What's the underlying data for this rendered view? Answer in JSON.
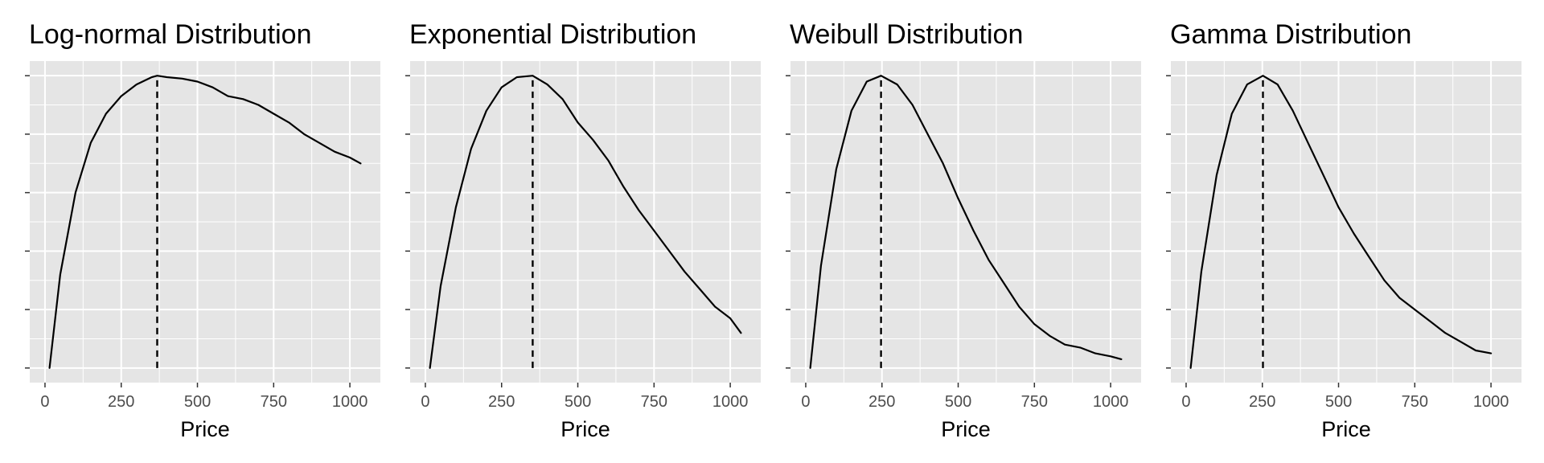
{
  "colors": {
    "panel_bg": "#e5e5e5",
    "grid": "#ffffff",
    "curve": "#000000",
    "mode_line": "#000000",
    "tick_text": "#4d4d4d",
    "tick_mark": "#333333"
  },
  "chart_data": [
    {
      "type": "line",
      "title": "Log-normal Distribution",
      "xlabel": "Price",
      "ylabel": "",
      "xlim": [
        -50,
        1100
      ],
      "ylim": [
        -0.05,
        1.05
      ],
      "xticks": [
        0,
        250,
        500,
        750,
        1000
      ],
      "xtick_labels": [
        "0",
        "250",
        "500",
        "750",
        "1000"
      ],
      "y_tick_labels_shown": false,
      "grid": true,
      "mode_line": {
        "x": 368,
        "style": "dashed"
      },
      "x": [
        15,
        50,
        100,
        150,
        200,
        250,
        300,
        350,
        368,
        400,
        450,
        500,
        550,
        600,
        650,
        700,
        750,
        800,
        850,
        900,
        950,
        1000,
        1035
      ],
      "y": [
        0.0,
        0.32,
        0.6,
        0.77,
        0.87,
        0.93,
        0.97,
        0.995,
        1.0,
        0.995,
        0.99,
        0.98,
        0.96,
        0.93,
        0.92,
        0.9,
        0.87,
        0.84,
        0.8,
        0.77,
        0.74,
        0.72,
        0.7
      ]
    },
    {
      "type": "line",
      "title": "Exponential Distribution",
      "xlabel": "Price",
      "ylabel": "",
      "xlim": [
        -50,
        1100
      ],
      "ylim": [
        -0.05,
        1.05
      ],
      "xticks": [
        0,
        250,
        500,
        750,
        1000
      ],
      "xtick_labels": [
        "0",
        "250",
        "500",
        "750",
        "1000"
      ],
      "y_tick_labels_shown": false,
      "grid": true,
      "mode_line": {
        "x": 352,
        "style": "dashed"
      },
      "x": [
        15,
        50,
        100,
        150,
        200,
        250,
        300,
        352,
        400,
        450,
        500,
        550,
        600,
        650,
        700,
        750,
        800,
        850,
        900,
        950,
        1000,
        1035
      ],
      "y": [
        0.0,
        0.28,
        0.55,
        0.75,
        0.88,
        0.96,
        0.995,
        1.0,
        0.97,
        0.92,
        0.84,
        0.78,
        0.71,
        0.62,
        0.54,
        0.47,
        0.4,
        0.33,
        0.27,
        0.21,
        0.17,
        0.12
      ]
    },
    {
      "type": "line",
      "title": "Weibull Distribution",
      "xlabel": "Price",
      "ylabel": "",
      "xlim": [
        -50,
        1100
      ],
      "ylim": [
        -0.05,
        1.05
      ],
      "xticks": [
        0,
        250,
        500,
        750,
        1000
      ],
      "xtick_labels": [
        "0",
        "250",
        "500",
        "750",
        "1000"
      ],
      "y_tick_labels_shown": false,
      "grid": true,
      "mode_line": {
        "x": 247,
        "style": "dashed"
      },
      "x": [
        15,
        50,
        100,
        150,
        200,
        247,
        300,
        350,
        400,
        450,
        500,
        550,
        600,
        650,
        700,
        750,
        800,
        850,
        900,
        950,
        1000,
        1035
      ],
      "y": [
        0.0,
        0.35,
        0.68,
        0.88,
        0.98,
        1.0,
        0.97,
        0.9,
        0.8,
        0.7,
        0.58,
        0.47,
        0.37,
        0.29,
        0.21,
        0.15,
        0.11,
        0.08,
        0.07,
        0.05,
        0.04,
        0.03
      ]
    },
    {
      "type": "line",
      "title": "Gamma Distribution",
      "xlabel": "Price",
      "ylabel": "",
      "xlim": [
        -50,
        1100
      ],
      "ylim": [
        -0.05,
        1.05
      ],
      "xticks": [
        0,
        250,
        500,
        750,
        1000
      ],
      "xtick_labels": [
        "0",
        "250",
        "500",
        "750",
        "1000"
      ],
      "y_tick_labels_shown": false,
      "grid": true,
      "mode_line": {
        "x": 252,
        "style": "dashed"
      },
      "x": [
        15,
        50,
        100,
        150,
        200,
        252,
        300,
        350,
        400,
        450,
        500,
        550,
        600,
        650,
        700,
        750,
        800,
        850,
        900,
        950,
        1000
      ],
      "y": [
        0.0,
        0.33,
        0.66,
        0.87,
        0.97,
        1.0,
        0.97,
        0.88,
        0.77,
        0.66,
        0.55,
        0.46,
        0.38,
        0.3,
        0.24,
        0.2,
        0.16,
        0.12,
        0.09,
        0.06,
        0.05
      ]
    }
  ]
}
